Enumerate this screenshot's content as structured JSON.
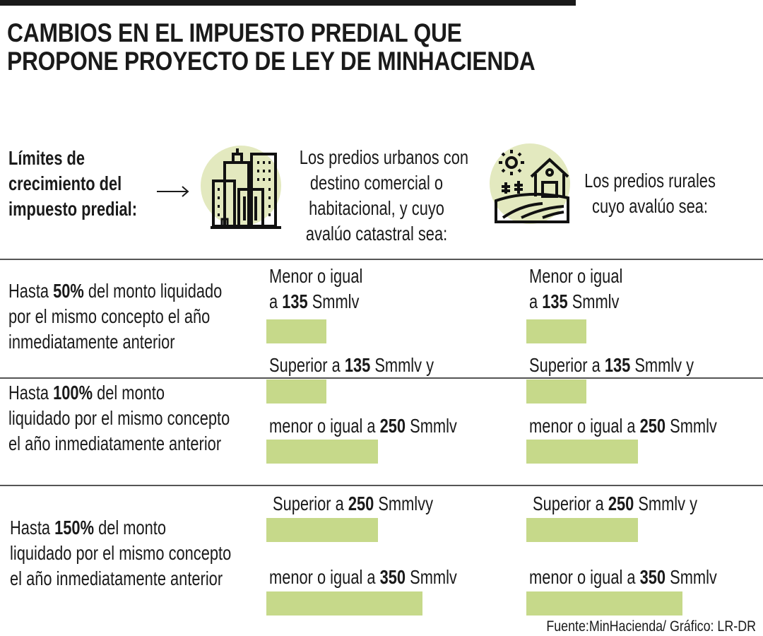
{
  "title": [
    "CAMBIOS EN EL IMPUESTO PREDIAL QUE",
    "PROPONE PROYECTO DE LEY DE MINHACIENDA"
  ],
  "header": {
    "label": [
      "Límites de",
      "crecimiento del",
      "impuesto predial:"
    ],
    "urban": {
      "icon": "buildings-icon",
      "text": [
        "Los predios urbanos con",
        "destino comercial o",
        "habitacional, y cuyo",
        "avalúo catastral sea:"
      ]
    },
    "rural": {
      "icon": "farm-house-icon",
      "text": [
        "Los predios rurales",
        "cuyo avalúo sea:"
      ]
    }
  },
  "colors": {
    "bar": "#c6d98a",
    "icon_circle": "#e3e9bf"
  },
  "rows": [
    {
      "limit": {
        "pre": "Hasta ",
        "bold": "50%",
        "post": " del monto liquidado",
        "lines": [
          "por el mismo concepto el año",
          "inmediatamente anterior"
        ]
      },
      "urban": [
        {
          "pre": "Menor o igual",
          "bold": "",
          "post": ""
        },
        {
          "pre": "a ",
          "bold": "135",
          "post": " Smmlv"
        }
      ],
      "rural": [
        {
          "pre": "Menor o igual",
          "bold": "",
          "post": ""
        },
        {
          "pre": "a ",
          "bold": "135",
          "post": " Smmlv"
        }
      ],
      "bar_value": 135
    },
    {
      "limit": {
        "pre": "Hasta ",
        "bold": "100%",
        "post": " del monto",
        "lines": [
          "liquidado por el mismo concepto",
          "el año inmediatamente anterior"
        ]
      },
      "urban": [
        {
          "pre": "Superior a ",
          "bold": "135",
          "post": " Smmlv y"
        },
        {
          "pre": "menor o igual a ",
          "bold": "250",
          "post": " Smmlv"
        }
      ],
      "rural": [
        {
          "pre": "Superior a ",
          "bold": "135",
          "post": " Smmlv y"
        },
        {
          "pre": "menor o igual a ",
          "bold": "250",
          "post": " Smmlv"
        }
      ],
      "bar_values": [
        135,
        250
      ]
    },
    {
      "limit": {
        "pre": "Hasta ",
        "bold": "150%",
        "post": " del monto",
        "lines": [
          "liquidado por el mismo concepto",
          "el año inmediatamente anterior"
        ]
      },
      "urban": [
        {
          "pre": "Superior a ",
          "bold": "250",
          "post": " Smmlvy"
        },
        {
          "pre": "menor o igual a ",
          "bold": "350",
          "post": " Smmlv"
        }
      ],
      "rural": [
        {
          "pre": "Superior a ",
          "bold": "250",
          "post": " Smmlv y"
        },
        {
          "pre": "menor o igual a ",
          "bold": "350",
          "post": " Smmlv"
        }
      ],
      "bar_values": [
        250,
        350
      ]
    }
  ],
  "source": "Fuente:MinHacienda/ Gráfico: LR-DR"
}
